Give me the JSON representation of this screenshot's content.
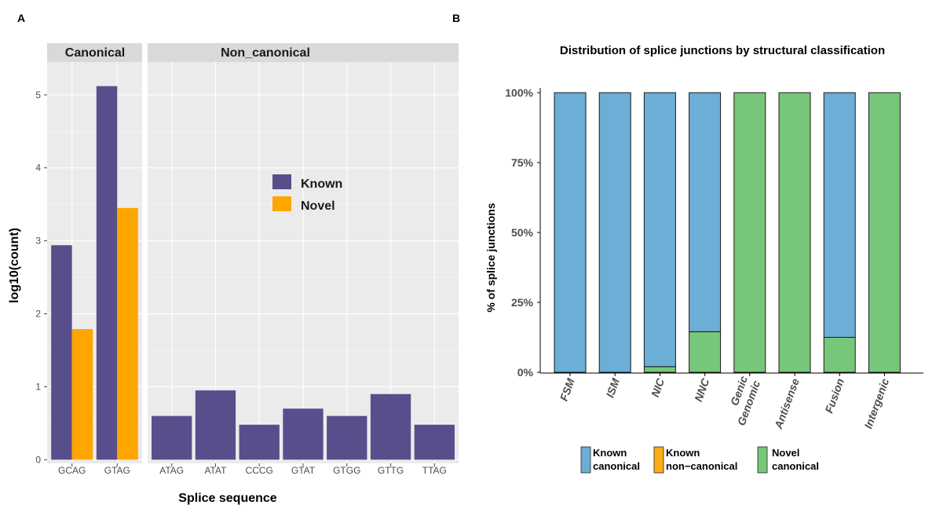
{
  "colors": {
    "known": "#594E8C",
    "novel": "#FFA500",
    "known_canonical": "#6BAED6",
    "known_noncanonical": "#FDAE17",
    "novel_canonical": "#78C679",
    "panel_bg": "#EBEBEB",
    "strip_bg": "#D9D9D9",
    "grid": "#FFFFFF"
  },
  "panel_a": {
    "label": "A",
    "strips": [
      "Canonical",
      "Non_canonical"
    ],
    "xlabel": "Splice sequence",
    "ylabel": "log10(count)"
  },
  "panel_b": {
    "label": "B",
    "title": "Distribution of splice junctions by structural classification",
    "ylabel": "% of splice junctions",
    "legend": [
      {
        "label_lines": [
          "Known",
          "canonical"
        ],
        "color_key": "known_canonical"
      },
      {
        "label_lines": [
          "Known",
          "non−canonical"
        ],
        "color_key": "known_noncanonical"
      },
      {
        "label_lines": [
          "Novel",
          "canonical"
        ],
        "color_key": "novel_canonical"
      }
    ]
  },
  "chart_data": [
    {
      "type": "bar",
      "facets": [
        {
          "name": "Canonical",
          "categories": [
            "GCAG",
            "GTAG"
          ],
          "series": [
            {
              "name": "Known",
              "values": [
                2.94,
                5.12
              ]
            },
            {
              "name": "Novel",
              "values": [
                1.79,
                3.45
              ]
            }
          ]
        },
        {
          "name": "Non_canonical",
          "categories": [
            "ATAG",
            "ATAT",
            "CCCG",
            "GTAT",
            "GTGG",
            "GTTG",
            "TTAG"
          ],
          "series": [
            {
              "name": "Known",
              "values": [
                0.6,
                0.95,
                0.48,
                0.7,
                0.6,
                0.9,
                0.48
              ]
            }
          ]
        }
      ],
      "xlabel": "Splice sequence",
      "ylabel": "log10(count)",
      "yticks": [
        "0",
        "1",
        "2",
        "3",
        "4",
        "5"
      ],
      "ylim": [
        -0.05,
        5.45
      ],
      "legend": [
        "Known",
        "Novel"
      ],
      "legend_position": "inside",
      "grid": true
    },
    {
      "type": "bar",
      "stacked": true,
      "percent": true,
      "title": "Distribution of splice junctions by structural classification",
      "categories": [
        "FSM",
        "ISM",
        "NIC",
        "NNC",
        "Genic\nGenomic",
        "Antisense",
        "Fusion",
        "Intergenic"
      ],
      "series": [
        {
          "name": "Known canonical",
          "values": [
            100,
            100,
            98,
            85.5,
            0,
            0,
            87.5,
            0
          ]
        },
        {
          "name": "Known non−canonical",
          "values": [
            0,
            0,
            0,
            0,
            0,
            0,
            0,
            0
          ]
        },
        {
          "name": "Novel canonical",
          "values": [
            0,
            0,
            2,
            14.5,
            100,
            100,
            12.5,
            100
          ]
        }
      ],
      "ylabel": "% of splice junctions",
      "yticks": [
        "0%",
        "25%",
        "50%",
        "75%",
        "100%"
      ],
      "ylim": [
        0,
        100
      ],
      "legend_position": "bottom",
      "grid": false
    }
  ]
}
